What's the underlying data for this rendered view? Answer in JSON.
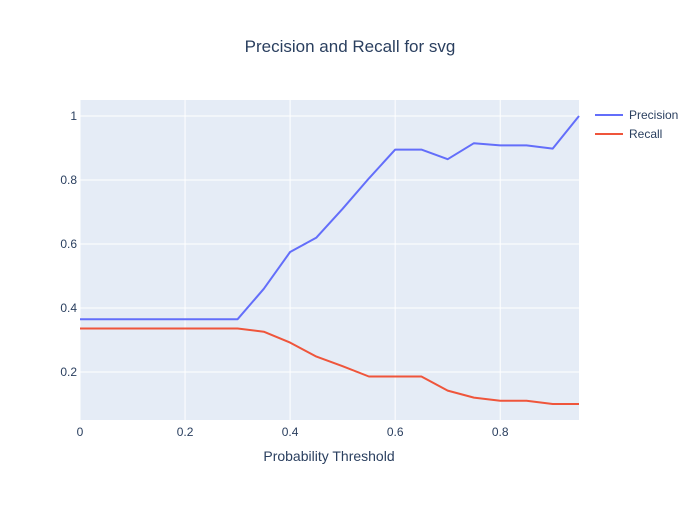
{
  "chart_data": {
    "type": "line",
    "title": "Precision and Recall for svg",
    "xlabel": "Probability Threshold",
    "ylabel": "",
    "xlim": [
      0,
      0.95
    ],
    "ylim": [
      0.05,
      1.05
    ],
    "x_ticks": [
      0,
      0.2,
      0.4,
      0.6,
      0.8
    ],
    "x_tick_labels": [
      "0",
      "0.2",
      "0.4",
      "0.6",
      "0.8"
    ],
    "y_ticks": [
      0.2,
      0.4,
      0.6,
      0.8,
      1
    ],
    "y_tick_labels": [
      "0.2",
      "0.4",
      "0.6",
      "0.8",
      "1"
    ],
    "grid": true,
    "legend_position": "top-right",
    "plot_background": "#e5ecf6",
    "x": [
      0,
      0.05,
      0.1,
      0.15,
      0.2,
      0.25,
      0.3,
      0.35,
      0.4,
      0.45,
      0.5,
      0.55,
      0.6,
      0.65,
      0.7,
      0.75,
      0.8,
      0.85,
      0.9,
      0.95
    ],
    "series": [
      {
        "name": "Precision",
        "color": "#636efa",
        "values": [
          0.365,
          0.365,
          0.365,
          0.365,
          0.365,
          0.365,
          0.365,
          0.46,
          0.575,
          0.62,
          0.71,
          0.805,
          0.895,
          0.895,
          0.865,
          0.915,
          0.908,
          0.908,
          0.898,
          1.0
        ]
      },
      {
        "name": "Recall",
        "color": "#ef553b",
        "values": [
          0.336,
          0.336,
          0.336,
          0.336,
          0.336,
          0.336,
          0.336,
          0.326,
          0.292,
          0.248,
          0.218,
          0.186,
          0.186,
          0.186,
          0.142,
          0.12,
          0.11,
          0.11,
          0.1,
          0.1
        ]
      }
    ]
  }
}
